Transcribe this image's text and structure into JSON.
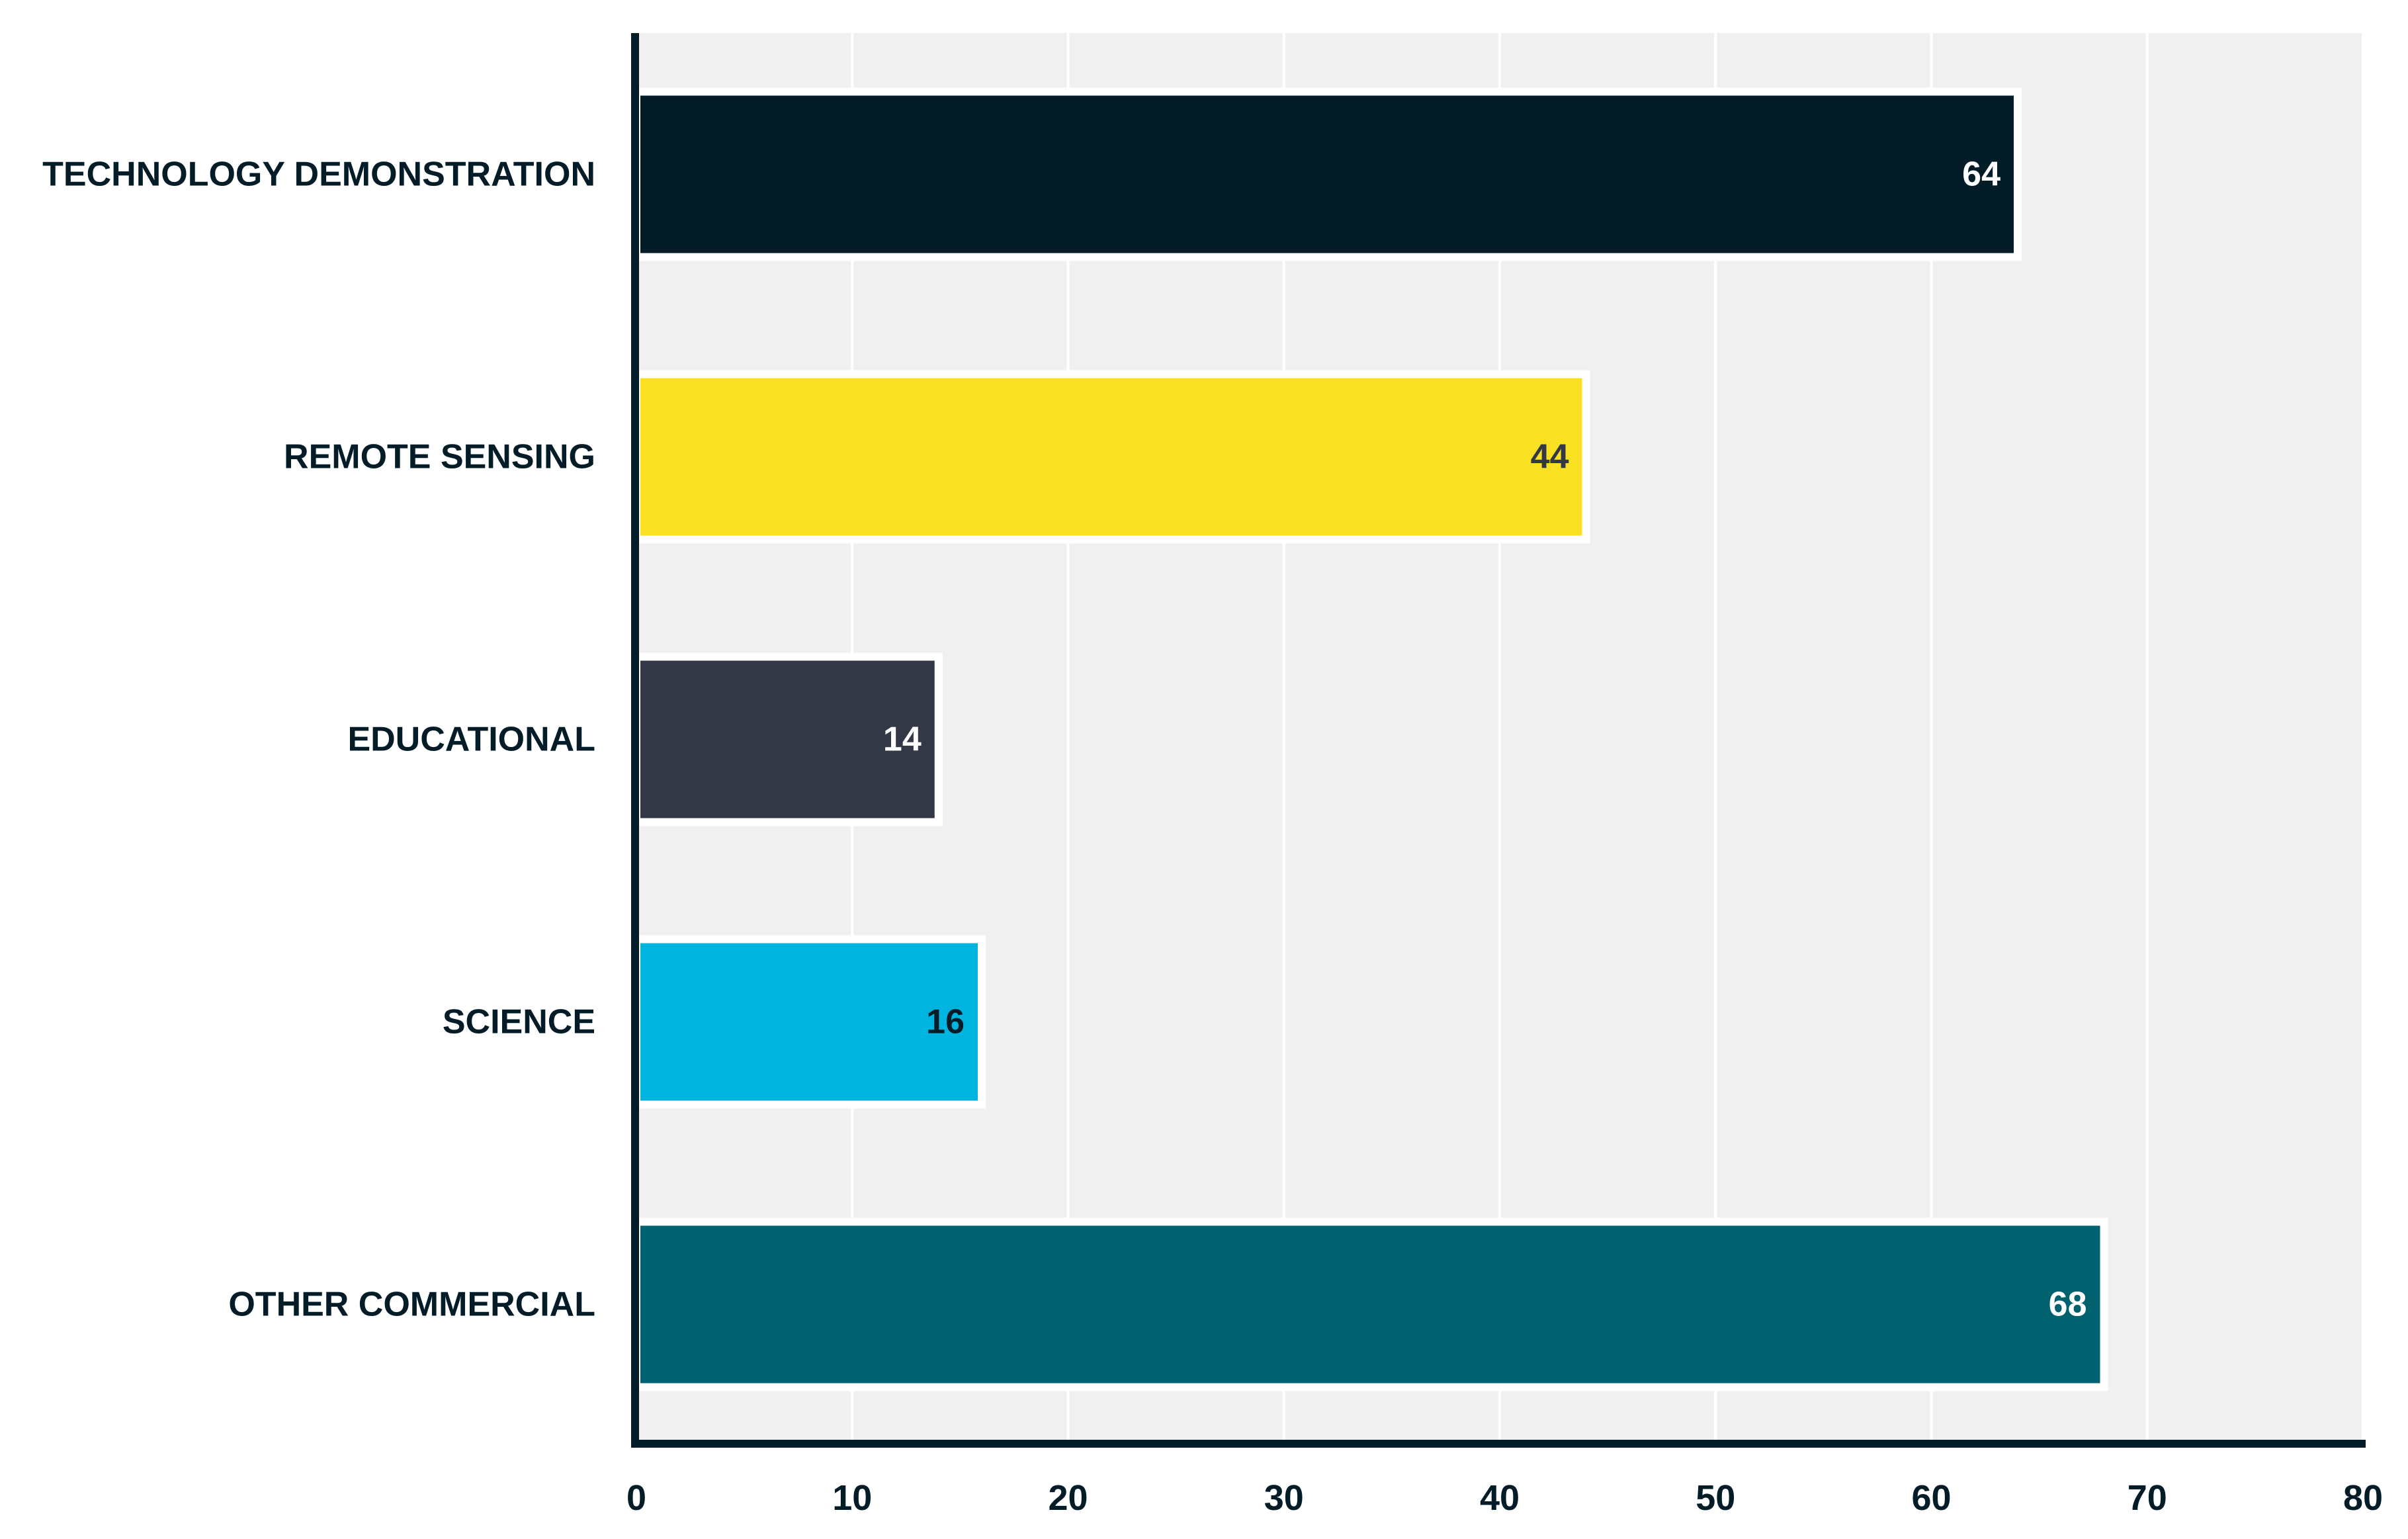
{
  "chart_data": {
    "type": "bar",
    "orientation": "horizontal",
    "title": "",
    "xlabel": "",
    "ylabel": "",
    "categories": [
      "TECHNOLOGY DEMONSTRATION",
      "REMOTE SENSING",
      "EDUCATIONAL",
      "SCIENCE",
      "OTHER COMMERCIAL"
    ],
    "values": [
      64,
      44,
      14,
      16,
      68
    ],
    "colors": [
      "#031c28",
      "#f9e022",
      "#333847",
      "#00b4e0",
      "#02616e"
    ],
    "label_colors": [
      "#ffffff",
      "#333847",
      "#ffffff",
      "#031c28",
      "#ffffff"
    ],
    "xlim": [
      0,
      80
    ],
    "xticks": [
      0,
      10,
      20,
      30,
      40,
      50,
      60,
      70,
      80
    ],
    "grid": "vertical",
    "legend": "none",
    "plot_background": "#f0f0f0",
    "axis_color": "#031c28",
    "text_color": "#031c28"
  }
}
